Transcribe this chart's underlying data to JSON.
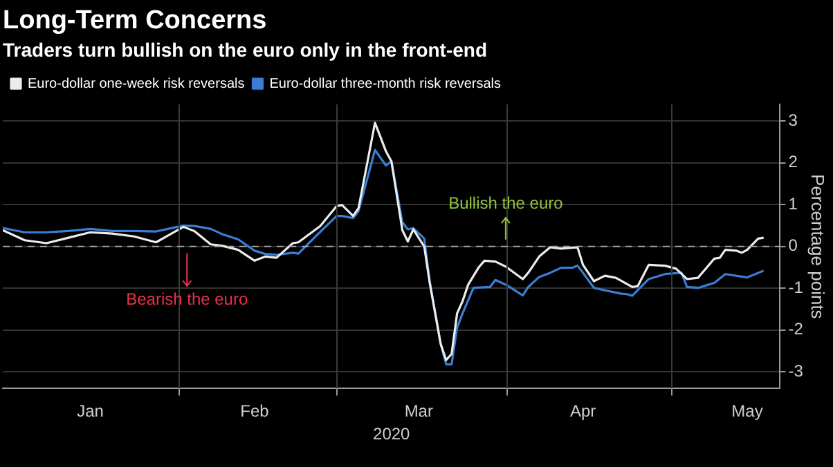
{
  "chart_data": {
    "type": "line",
    "title": "Long-Term Concerns",
    "subtitle": "Traders turn bullish on the euro only in the front-end",
    "xlabel": "2020",
    "ylabel": "Percentage points",
    "series": [
      {
        "name": "Euro-dollar one-week risk reversals",
        "color": "#ececec",
        "x": [
          "2019-12-31",
          "2020-01-04",
          "2020-01-08",
          "2020-01-12",
          "2020-01-16",
          "2020-01-20",
          "2020-01-24",
          "2020-01-28",
          "2020-02-02",
          "2020-02-04",
          "2020-02-07",
          "2020-02-09",
          "2020-02-12",
          "2020-02-15",
          "2020-02-17",
          "2020-02-19",
          "2020-02-22",
          "2020-02-23",
          "2020-02-27",
          "2020-03-01",
          "2020-03-02",
          "2020-03-04",
          "2020-03-05",
          "2020-03-08",
          "2020-03-10",
          "2020-03-11",
          "2020-03-13",
          "2020-03-14",
          "2020-03-15",
          "2020-03-17",
          "2020-03-18",
          "2020-03-20",
          "2020-03-21",
          "2020-03-22",
          "2020-03-23",
          "2020-03-24",
          "2020-03-25",
          "2020-03-27",
          "2020-03-28",
          "2020-03-30",
          "2020-04-01",
          "2020-04-04",
          "2020-04-05",
          "2020-04-07",
          "2020-04-09",
          "2020-04-11",
          "2020-04-14",
          "2020-04-15",
          "2020-04-17",
          "2020-04-19",
          "2020-04-21",
          "2020-04-24",
          "2020-04-25",
          "2020-04-27",
          "2020-04-30",
          "2020-05-02",
          "2020-05-04",
          "2020-05-06",
          "2020-05-09",
          "2020-05-10",
          "2020-05-11",
          "2020-05-13",
          "2020-05-14",
          "2020-05-15",
          "2020-05-17",
          "2020-05-18"
        ],
        "values": [
          0.39,
          0.15,
          0.08,
          0.21,
          0.34,
          0.31,
          0.24,
          0.1,
          0.47,
          0.37,
          0.05,
          0.02,
          -0.08,
          -0.34,
          -0.24,
          -0.27,
          0.08,
          0.1,
          0.49,
          0.97,
          0.99,
          0.73,
          0.92,
          2.96,
          2.28,
          2.04,
          0.39,
          0.12,
          0.41,
          0,
          -0.87,
          -2.33,
          -2.72,
          -2.57,
          -1.6,
          -1.31,
          -0.92,
          -0.49,
          -0.34,
          -0.36,
          -0.49,
          -0.78,
          -0.63,
          -0.24,
          -0.02,
          -0.05,
          -0.02,
          -0.44,
          -0.83,
          -0.7,
          -0.75,
          -0.97,
          -0.95,
          -0.44,
          -0.46,
          -0.53,
          -0.78,
          -0.75,
          -0.29,
          -0.27,
          -0.08,
          -0.1,
          -0.15,
          -0.08,
          0.19,
          0.21
        ]
      },
      {
        "name": "Euro-dollar three-month risk reversals",
        "color": "#3a7fd5",
        "x": [
          "2019-12-31",
          "2020-01-04",
          "2020-01-08",
          "2020-01-12",
          "2020-01-16",
          "2020-01-20",
          "2020-01-24",
          "2020-01-28",
          "2020-02-02",
          "2020-02-04",
          "2020-02-07",
          "2020-02-09",
          "2020-02-12",
          "2020-02-15",
          "2020-02-17",
          "2020-02-19",
          "2020-02-22",
          "2020-02-23",
          "2020-02-27",
          "2020-03-01",
          "2020-03-02",
          "2020-03-04",
          "2020-03-05",
          "2020-03-08",
          "2020-03-10",
          "2020-03-11",
          "2020-03-13",
          "2020-03-14",
          "2020-03-15",
          "2020-03-17",
          "2020-03-18",
          "2020-03-20",
          "2020-03-21",
          "2020-03-22",
          "2020-03-23",
          "2020-03-24",
          "2020-03-26",
          "2020-03-29",
          "2020-03-30",
          "2020-04-01",
          "2020-04-04",
          "2020-04-05",
          "2020-04-07",
          "2020-04-09",
          "2020-04-11",
          "2020-04-13",
          "2020-04-14",
          "2020-04-15",
          "2020-04-17",
          "2020-04-19",
          "2020-04-22",
          "2020-04-23",
          "2020-04-24",
          "2020-04-27",
          "2020-04-30",
          "2020-05-03",
          "2020-05-04",
          "2020-05-06",
          "2020-05-09",
          "2020-05-11",
          "2020-05-15",
          "2020-05-18"
        ],
        "values": [
          0.44,
          0.34,
          0.34,
          0.37,
          0.42,
          0.37,
          0.37,
          0.36,
          0.5,
          0.49,
          0.42,
          0.3,
          0.17,
          -0.1,
          -0.18,
          -0.2,
          -0.15,
          -0.17,
          0.35,
          0.73,
          0.73,
          0.68,
          0.85,
          2.31,
          1.94,
          2.04,
          0.58,
          0.41,
          0.44,
          0.19,
          -0.83,
          -2.33,
          -2.82,
          -2.82,
          -1.94,
          -1.6,
          -0.99,
          -0.97,
          -0.8,
          -0.92,
          -1.17,
          -0.97,
          -0.73,
          -0.63,
          -0.51,
          -0.51,
          -0.46,
          -0.63,
          -0.99,
          -1.05,
          -1.13,
          -1.14,
          -1.18,
          -0.78,
          -0.66,
          -0.63,
          -0.97,
          -0.99,
          -0.87,
          -0.66,
          -0.74,
          -0.58
        ]
      }
    ],
    "xlim": [
      "2019-12-31",
      "2020-05-21"
    ],
    "xticks": [
      {
        "value": "2020-01-16",
        "label": "Jan"
      },
      {
        "value": "2020-02-01",
        "label": null
      },
      {
        "value": "2020-02-15",
        "label": "Feb"
      },
      {
        "value": "2020-03-01",
        "label": null
      },
      {
        "value": "2020-03-16",
        "label": "Mar"
      },
      {
        "value": "2020-04-01",
        "label": null
      },
      {
        "value": "2020-04-15",
        "label": "Apr"
      },
      {
        "value": "2020-05-01",
        "label": null
      },
      {
        "value": "2020-05-15",
        "label": "May"
      }
    ],
    "ylim": [
      -3.4,
      3.4
    ],
    "yticks": [
      -3,
      -2,
      -1,
      0,
      1,
      2,
      3
    ],
    "ref_lines": [
      {
        "axis": "y",
        "value": 0,
        "color": "#a0a0a0",
        "line_style": "dashed"
      }
    ],
    "annotations": [
      "Bearish the euro",
      "Bullish the euro"
    ],
    "grid": true,
    "legend": "top left",
    "marker": "none",
    "line_style": "solid"
  }
}
